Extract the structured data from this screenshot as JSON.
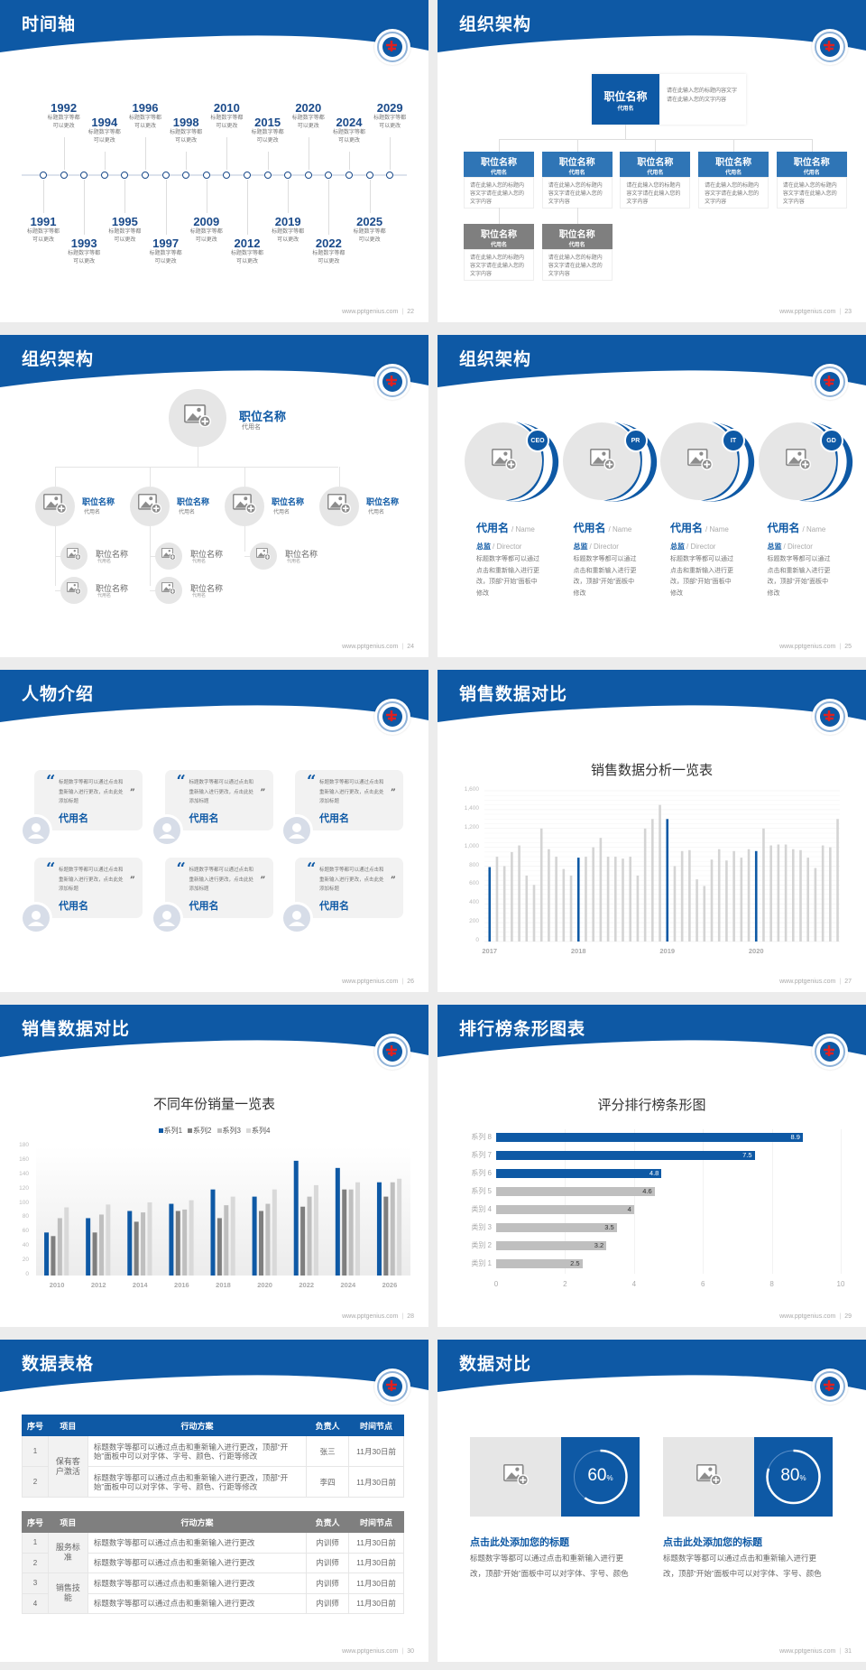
{
  "colors": {
    "primary": "#0e59a5",
    "secondary_blue": "#2f75b6",
    "gray_dark": "#7f7f7f",
    "gray_mid": "#bfbfbf",
    "gray_light": "#d9d9d9"
  },
  "footer_site": "www.pptgenius.com",
  "slides": [
    {
      "title": "时间轴",
      "page": "22"
    },
    {
      "title": "组织架构",
      "page": "23"
    },
    {
      "title": "组织架构",
      "page": "24"
    },
    {
      "title": "组织架构",
      "page": "25"
    },
    {
      "title": "人物介绍",
      "page": "26"
    },
    {
      "title": "销售数据对比",
      "page": "27"
    },
    {
      "title": "销售数据对比",
      "page": "28"
    },
    {
      "title": "排行榜条形图表",
      "page": "29"
    },
    {
      "title": "数据表格",
      "page": "30"
    },
    {
      "title": "数据对比",
      "page": "31"
    }
  ],
  "timeline": {
    "items": [
      {
        "year": "1991",
        "text": "标题数字等都可以更改",
        "pos": "bottom"
      },
      {
        "year": "1992",
        "text": "标题数字等都可以更改",
        "pos": "top"
      },
      {
        "year": "1993",
        "text": "标题数字等都可以更改",
        "pos": "bottom"
      },
      {
        "year": "1994",
        "text": "标题数字等都可以更改",
        "pos": "top"
      },
      {
        "year": "1995",
        "text": "标题数字等都可以更改",
        "pos": "bottom"
      },
      {
        "year": "1996",
        "text": "标题数字等都可以更改",
        "pos": "top"
      },
      {
        "year": "1997",
        "text": "标题数字等都可以更改",
        "pos": "bottom"
      },
      {
        "year": "1998",
        "text": "标题数字等都可以更改",
        "pos": "top"
      },
      {
        "year": "2009",
        "text": "标题数字等都可以更改",
        "pos": "bottom"
      },
      {
        "year": "2010",
        "text": "标题数字等都可以更改",
        "pos": "top"
      },
      {
        "year": "2012",
        "text": "标题数字等都可以更改",
        "pos": "bottom"
      },
      {
        "year": "2015",
        "text": "标题数字等都可以更改",
        "pos": "top"
      },
      {
        "year": "2019",
        "text": "标题数字等都可以更改",
        "pos": "bottom"
      },
      {
        "year": "2020",
        "text": "标题数字等都可以更改",
        "pos": "top"
      },
      {
        "year": "2022",
        "text": "标题数字等都可以更改",
        "pos": "bottom"
      },
      {
        "year": "2024",
        "text": "标题数字等都可以更改",
        "pos": "top"
      },
      {
        "year": "2025",
        "text": "标题数字等都可以更改",
        "pos": "bottom"
      },
      {
        "year": "2029",
        "text": "标题数字等都可以更改",
        "pos": "top"
      }
    ]
  },
  "org_boxes": {
    "top": {
      "title": "职位名称",
      "sub": "代用名",
      "desc": "请在此输入您的标题内容文字请在此输入您的文字内容"
    },
    "children": [
      {
        "title": "职位名称",
        "sub": "代用名",
        "desc": "请在此输入您的标题内容文字请在此输入您的文字内容",
        "style": "blue"
      },
      {
        "title": "职位名称",
        "sub": "代用名",
        "desc": "请在此输入您的标题内容文字请在此输入您的文字内容",
        "style": "blue"
      },
      {
        "title": "职位名称",
        "sub": "代用名",
        "desc": "请在此输入您的标题内容文字请在此输入您的文字内容",
        "style": "blue"
      },
      {
        "title": "职位名称",
        "sub": "代用名",
        "desc": "请在此输入您的标题内容文字请在此输入您的文字内容",
        "style": "blue"
      },
      {
        "title": "职位名称",
        "sub": "代用名",
        "desc": "请在此输入您的标题内容文字请在此输入您的文字内容",
        "style": "blue"
      },
      {
        "title": "职位名称",
        "sub": "代用名",
        "desc": "请在此输入您的标题内容文字请在此输入您的文字内容",
        "style": "gray"
      },
      {
        "title": "职位名称",
        "sub": "代用名",
        "desc": "请在此输入您的标题内容文字请在此输入您的文字内容",
        "style": "gray"
      }
    ]
  },
  "org_circles": {
    "root": {
      "title": "职位名称",
      "sub": "代用名"
    },
    "level1": [
      {
        "title": "职位名称",
        "sub": "代用名",
        "children": [
          {
            "title": "职位名称",
            "sub": "代用名"
          },
          {
            "title": "职位名称",
            "sub": "代用名"
          }
        ]
      },
      {
        "title": "职位名称",
        "sub": "代用名",
        "children": [
          {
            "title": "职位名称",
            "sub": "代用名"
          },
          {
            "title": "职位名称",
            "sub": "代用名"
          }
        ]
      },
      {
        "title": "职位名称",
        "sub": "代用名",
        "children": [
          {
            "title": "职位名称",
            "sub": "代用名"
          }
        ]
      },
      {
        "title": "职位名称",
        "sub": "代用名",
        "children": []
      }
    ]
  },
  "team": [
    {
      "badge": "CEO",
      "name": "代用名",
      "name_en": "/ Name",
      "role": "总监",
      "role_en": "/  Director",
      "desc": "标题数字等都可以通过点击和重新输入进行更改，顶部“开始”面板中修改"
    },
    {
      "badge": "PR",
      "name": "代用名",
      "name_en": "/ Name",
      "role": "总监",
      "role_en": "/  Director",
      "desc": "标题数字等都可以通过点击和重新输入进行更改，顶部“开始”面板中修改"
    },
    {
      "badge": "IT",
      "name": "代用名",
      "name_en": "/ Name",
      "role": "总监",
      "role_en": "/  Director",
      "desc": "标题数字等都可以通过点击和重新输入进行更改，顶部“开始”面板中修改"
    },
    {
      "badge": "GD",
      "name": "代用名",
      "name_en": "/ Name",
      "role": "总监",
      "role_en": "/  Director",
      "desc": "标题数字等都可以通过点击和重新输入进行更改，顶部“开始”面板中修改"
    }
  ],
  "people": [
    {
      "quote": "标题数字等都可以通过点击和重新输入进行更改，点击此处添加标题",
      "name": "代用名"
    },
    {
      "quote": "标题数字等都可以通过点击和重新输入进行更改，点击此处添加标题",
      "name": "代用名"
    },
    {
      "quote": "标题数字等都可以通过点击和重新输入进行更改，点击此处添加标题",
      "name": "代用名"
    },
    {
      "quote": "标题数字等都可以通过点击和重新输入进行更改，点击此处添加标题",
      "name": "代用名"
    },
    {
      "quote": "标题数字等都可以通过点击和重新输入进行更改，点击此处添加标题",
      "name": "代用名"
    },
    {
      "quote": "标题数字等都可以通过点击和重新输入进行更改，点击此处添加标题",
      "name": "代用名"
    }
  ],
  "chart_data": [
    {
      "type": "bar",
      "title": "销售数据分析一览表",
      "ylim": [
        0,
        1600
      ],
      "yticks": [
        "0",
        "200",
        "400",
        "600",
        "800",
        "1,000",
        "1,200",
        "1,400",
        "1,600"
      ],
      "year_labels": [
        "2017",
        "2018",
        "2019",
        "2020"
      ],
      "values": [
        790,
        900,
        800,
        950,
        1020,
        700,
        600,
        1200,
        980,
        900,
        770,
        700,
        890,
        900,
        1000,
        1100,
        900,
        900,
        880,
        900,
        700,
        1200,
        1300,
        1450,
        1300,
        800,
        960,
        970,
        660,
        590,
        870,
        980,
        860,
        960,
        890,
        980,
        960,
        1200,
        1020,
        1030,
        1030,
        980,
        970,
        890,
        780,
        1020,
        1000,
        1300
      ],
      "highlight": "first bar of each year in blue",
      "grid": true
    },
    {
      "type": "bar",
      "title": "不同年份销量一览表",
      "categories": [
        "2010",
        "2012",
        "2014",
        "2016",
        "2018",
        "2020",
        "2022",
        "2024",
        "2026"
      ],
      "ylim": [
        0,
        180
      ],
      "yticks": [
        "0",
        "20",
        "40",
        "60",
        "80",
        "100",
        "120",
        "140",
        "160",
        "180"
      ],
      "legend": "top",
      "series": [
        {
          "name": "系列1",
          "color": "#0e59a5",
          "values": [
            60,
            80,
            90,
            100,
            120,
            110,
            160,
            150,
            130
          ]
        },
        {
          "name": "系列2",
          "color": "#7f7f7f",
          "values": [
            55,
            60,
            75,
            90,
            80,
            90,
            96,
            120,
            110
          ]
        },
        {
          "name": "系列3",
          "color": "#bfbfbf",
          "values": [
            80,
            85,
            88,
            92,
            98,
            100,
            110,
            120,
            130
          ]
        },
        {
          "name": "系列4",
          "color": "#d9d9d9",
          "values": [
            95,
            99,
            102,
            105,
            110,
            120,
            126,
            130,
            135
          ]
        }
      ]
    },
    {
      "type": "bar",
      "orientation": "horizontal",
      "title": "评分排行榜条形图",
      "categories": [
        "系列 8",
        "系列 7",
        "系列 6",
        "系列 5",
        "类别 4",
        "类别 3",
        "类别 2",
        "类别 1"
      ],
      "values": [
        8.9,
        7.5,
        4.8,
        4.6,
        4,
        3.5,
        3.2,
        2.5
      ],
      "labels": [
        "8.9",
        "7.5",
        "4.8",
        "4.6",
        "4",
        "3.5",
        "3.2",
        "2.5"
      ],
      "highlighted": [
        true,
        true,
        true,
        false,
        false,
        false,
        false,
        false
      ],
      "xlim": [
        0,
        10
      ],
      "xticks": [
        "0",
        "2",
        "4",
        "6",
        "8",
        "10"
      ]
    }
  ],
  "tables": {
    "headers": [
      "序号",
      "项目",
      "行动方案",
      "负责人",
      "时间节点"
    ],
    "table1": {
      "group": "保有客户激活",
      "rows": [
        {
          "no": "1",
          "plan": "标题数字等都可以通过点击和重新输入进行更改，顶部“开始”面板中可以对字体、字号、颜色、行距等修改",
          "owner": "张三",
          "date": "11月30日前"
        },
        {
          "no": "2",
          "plan": "标题数字等都可以通过点击和重新输入进行更改，顶部“开始”面板中可以对字体、字号、颜色、行距等修改",
          "owner": "李四",
          "date": "11月30日前"
        }
      ]
    },
    "table2": {
      "groups": [
        "服务标准",
        "销售技能"
      ],
      "rows": [
        {
          "no": "1",
          "plan": "标题数字等都可以通过点击和重新输入进行更改",
          "owner": "内训师",
          "date": "11月30日前"
        },
        {
          "no": "2",
          "plan": "标题数字等都可以通过点击和重新输入进行更改",
          "owner": "内训师",
          "date": "11月30日前"
        },
        {
          "no": "3",
          "plan": "标题数字等都可以通过点击和重新输入进行更改",
          "owner": "内训师",
          "date": "11月30日前"
        },
        {
          "no": "4",
          "plan": "标题数字等都可以通过点击和重新输入进行更改",
          "owner": "内训师",
          "date": "11月30日前"
        }
      ]
    }
  },
  "compare": [
    {
      "value": "60",
      "percent": 60,
      "unit": "%",
      "title": "点击此处添加您的标题",
      "desc": "标题数字等都可以通过点击和重新输入进行更改，顶部“开始”面板中可以对字体、字号、颜色"
    },
    {
      "value": "80",
      "percent": 80,
      "unit": "%",
      "title": "点击此处添加您的标题",
      "desc": "标题数字等都可以通过点击和重新输入进行更改，顶部“开始”面板中可以对字体、字号、颜色"
    }
  ]
}
